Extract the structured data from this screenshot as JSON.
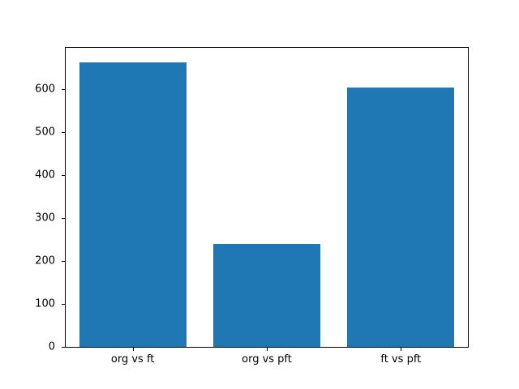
{
  "chart_data": {
    "type": "bar",
    "categories": [
      "org vs ft",
      "org vs pft",
      "ft vs pft"
    ],
    "values": [
      663,
      240,
      604
    ],
    "title": "",
    "xlabel": "",
    "ylabel": "",
    "ylim": [
      0,
      696
    ],
    "yticks": [
      0,
      100,
      200,
      300,
      400,
      500,
      600
    ],
    "bar_color": "#1f77b4",
    "bar_width_fraction": 0.8,
    "grid": false,
    "legend_position": "none",
    "plot_background": "#ffffff",
    "spine_color": "#000000"
  }
}
